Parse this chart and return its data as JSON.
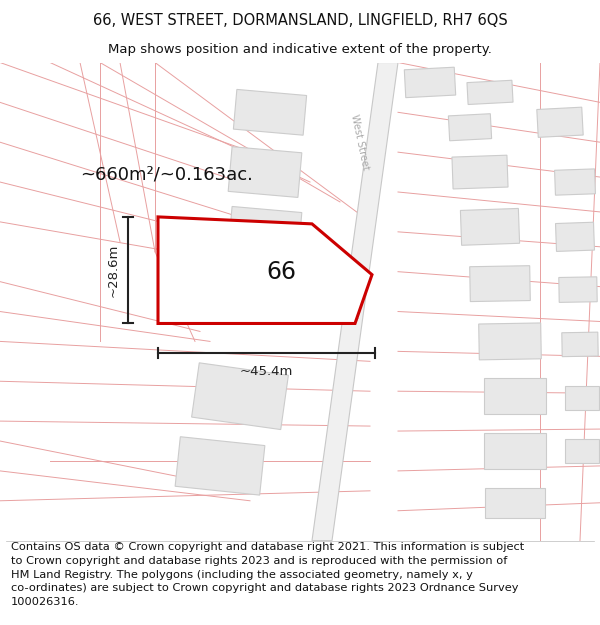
{
  "title_line1": "66, WEST STREET, DORMANSLAND, LINGFIELD, RH7 6QS",
  "title_line2": "Map shows position and indicative extent of the property.",
  "area_label": "~660m²/~0.163ac.",
  "property_number": "66",
  "dim_width": "~45.4m",
  "dim_height": "~28.6m",
  "bg_color": "#ffffff",
  "map_bg": "#ffffff",
  "road_line_color": "#e8a0a0",
  "road_fill_color": "#f5e8e8",
  "building_fill": "#e8e8e8",
  "building_edge": "#cccccc",
  "property_fill": "#ffffff",
  "property_outline": "#cc0000",
  "street_label_color": "#aaaaaa",
  "dim_color": "#222222",
  "text_color": "#111111",
  "title_fontsize": 10.5,
  "subtitle_fontsize": 9.5,
  "footer_fontsize": 8.2,
  "area_fontsize": 13,
  "number_fontsize": 17,
  "footer_lines": [
    "Contains OS data © Crown copyright and database right 2021. This information is subject",
    "to Crown copyright and database rights 2023 and is reproduced with the permission of",
    "HM Land Registry. The polygons (including the associated geometry, namely x, y",
    "co-ordinates) are subject to Crown copyright and database rights 2023 Ordnance Survey",
    "100026316."
  ]
}
